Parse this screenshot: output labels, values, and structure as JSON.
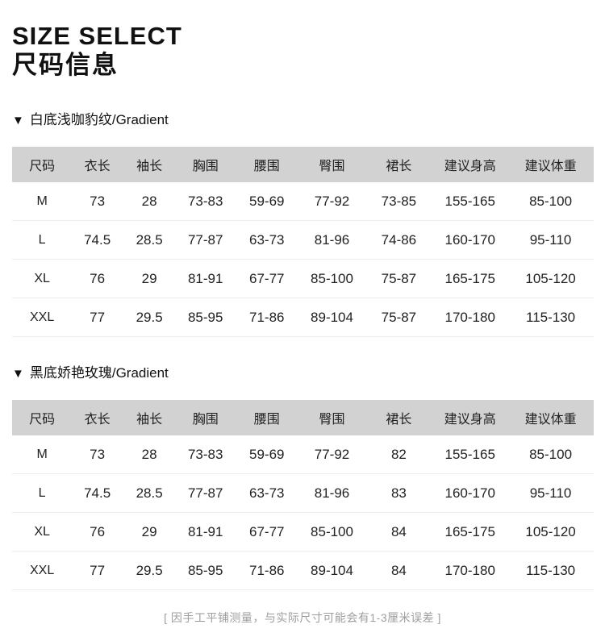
{
  "page": {
    "title_en": "SIZE SELECT",
    "title_zh": "尺码信息",
    "footnote": "[ 因手工平铺测量，与实际尺寸可能会有1-3厘米误差 ]"
  },
  "colors": {
    "header_bg": "#d2d2d2",
    "text": "#1a1a1a",
    "row_divider": "#ececec",
    "footnote_gray": "#9e9e9e"
  },
  "sections": [
    {
      "marker": "▼",
      "label": "白底浅咖豹纹/Gradient",
      "columns": [
        "尺码",
        "衣长",
        "袖长",
        "胸围",
        "腰围",
        "臀围",
        "裙长",
        "建议身高",
        "建议体重"
      ],
      "rows": [
        [
          "M",
          "73",
          "28",
          "73-83",
          "59-69",
          "77-92",
          "73-85",
          "155-165",
          "85-100"
        ],
        [
          "L",
          "74.5",
          "28.5",
          "77-87",
          "63-73",
          "81-96",
          "74-86",
          "160-170",
          "95-110"
        ],
        [
          "XL",
          "76",
          "29",
          "81-91",
          "67-77",
          "85-100",
          "75-87",
          "165-175",
          "105-120"
        ],
        [
          "XXL",
          "77",
          "29.5",
          "85-95",
          "71-86",
          "89-104",
          "75-87",
          "170-180",
          "115-130"
        ]
      ]
    },
    {
      "marker": "▼",
      "label": "黑底娇艳玫瑰/Gradient",
      "columns": [
        "尺码",
        "衣长",
        "袖长",
        "胸围",
        "腰围",
        "臀围",
        "裙长",
        "建议身高",
        "建议体重"
      ],
      "rows": [
        [
          "M",
          "73",
          "28",
          "73-83",
          "59-69",
          "77-92",
          "82",
          "155-165",
          "85-100"
        ],
        [
          "L",
          "74.5",
          "28.5",
          "77-87",
          "63-73",
          "81-96",
          "83",
          "160-170",
          "95-110"
        ],
        [
          "XL",
          "76",
          "29",
          "81-91",
          "67-77",
          "85-100",
          "84",
          "165-175",
          "105-120"
        ],
        [
          "XXL",
          "77",
          "29.5",
          "85-95",
          "71-86",
          "89-104",
          "84",
          "170-180",
          "115-130"
        ]
      ]
    }
  ]
}
